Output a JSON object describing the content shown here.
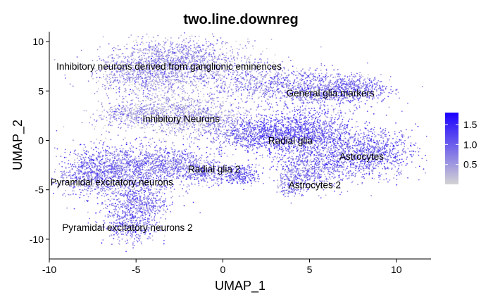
{
  "chart_data": {
    "type": "scatter",
    "title": "two.line.downreg",
    "xlabel": "UMAP_1",
    "ylabel": "UMAP_2",
    "xlim": [
      -10,
      12
    ],
    "ylim": [
      -12,
      11
    ],
    "x_ticks": [
      -10,
      -5,
      0,
      5,
      10
    ],
    "y_ticks": [
      -10,
      -5,
      0,
      5,
      10
    ],
    "grid": false,
    "color_scale": {
      "low_color": "#d3d3d3",
      "high_color": "#1a00ff",
      "min": 0,
      "max": 1.8,
      "ticks": [
        0.5,
        1.0,
        1.5
      ],
      "tick_labels": [
        "0.5",
        "1.0",
        "1.5"
      ],
      "legend_position": "right"
    },
    "clusters": [
      {
        "label": "Inhibitory neurons derived from ganglionic eminences",
        "x": -3.1,
        "y": 7.5,
        "expression": 0.55
      },
      {
        "label": "General glia markers",
        "x": 6.2,
        "y": 4.8,
        "expression": 0.8
      },
      {
        "label": "Inhibitory Neurons",
        "x": -2.4,
        "y": 2.2,
        "expression": 0.45
      },
      {
        "label": "Radial glia",
        "x": 3.9,
        "y": 0.0,
        "expression": 1.05
      },
      {
        "label": "Astrocytes",
        "x": 8.0,
        "y": -1.6,
        "expression": 0.9
      },
      {
        "label": "Radial glia 2",
        "x": -0.5,
        "y": -2.9,
        "expression": 0.75
      },
      {
        "label": "Pyramidal excitatory neurons",
        "x": -6.4,
        "y": -4.2,
        "expression": 0.8
      },
      {
        "label": "Astrocytes 2",
        "x": 5.3,
        "y": -4.5,
        "expression": 0.8
      },
      {
        "label": "Pyramidal excitatory neurons 2",
        "x": -5.5,
        "y": -8.8,
        "expression": 0.8
      }
    ]
  }
}
